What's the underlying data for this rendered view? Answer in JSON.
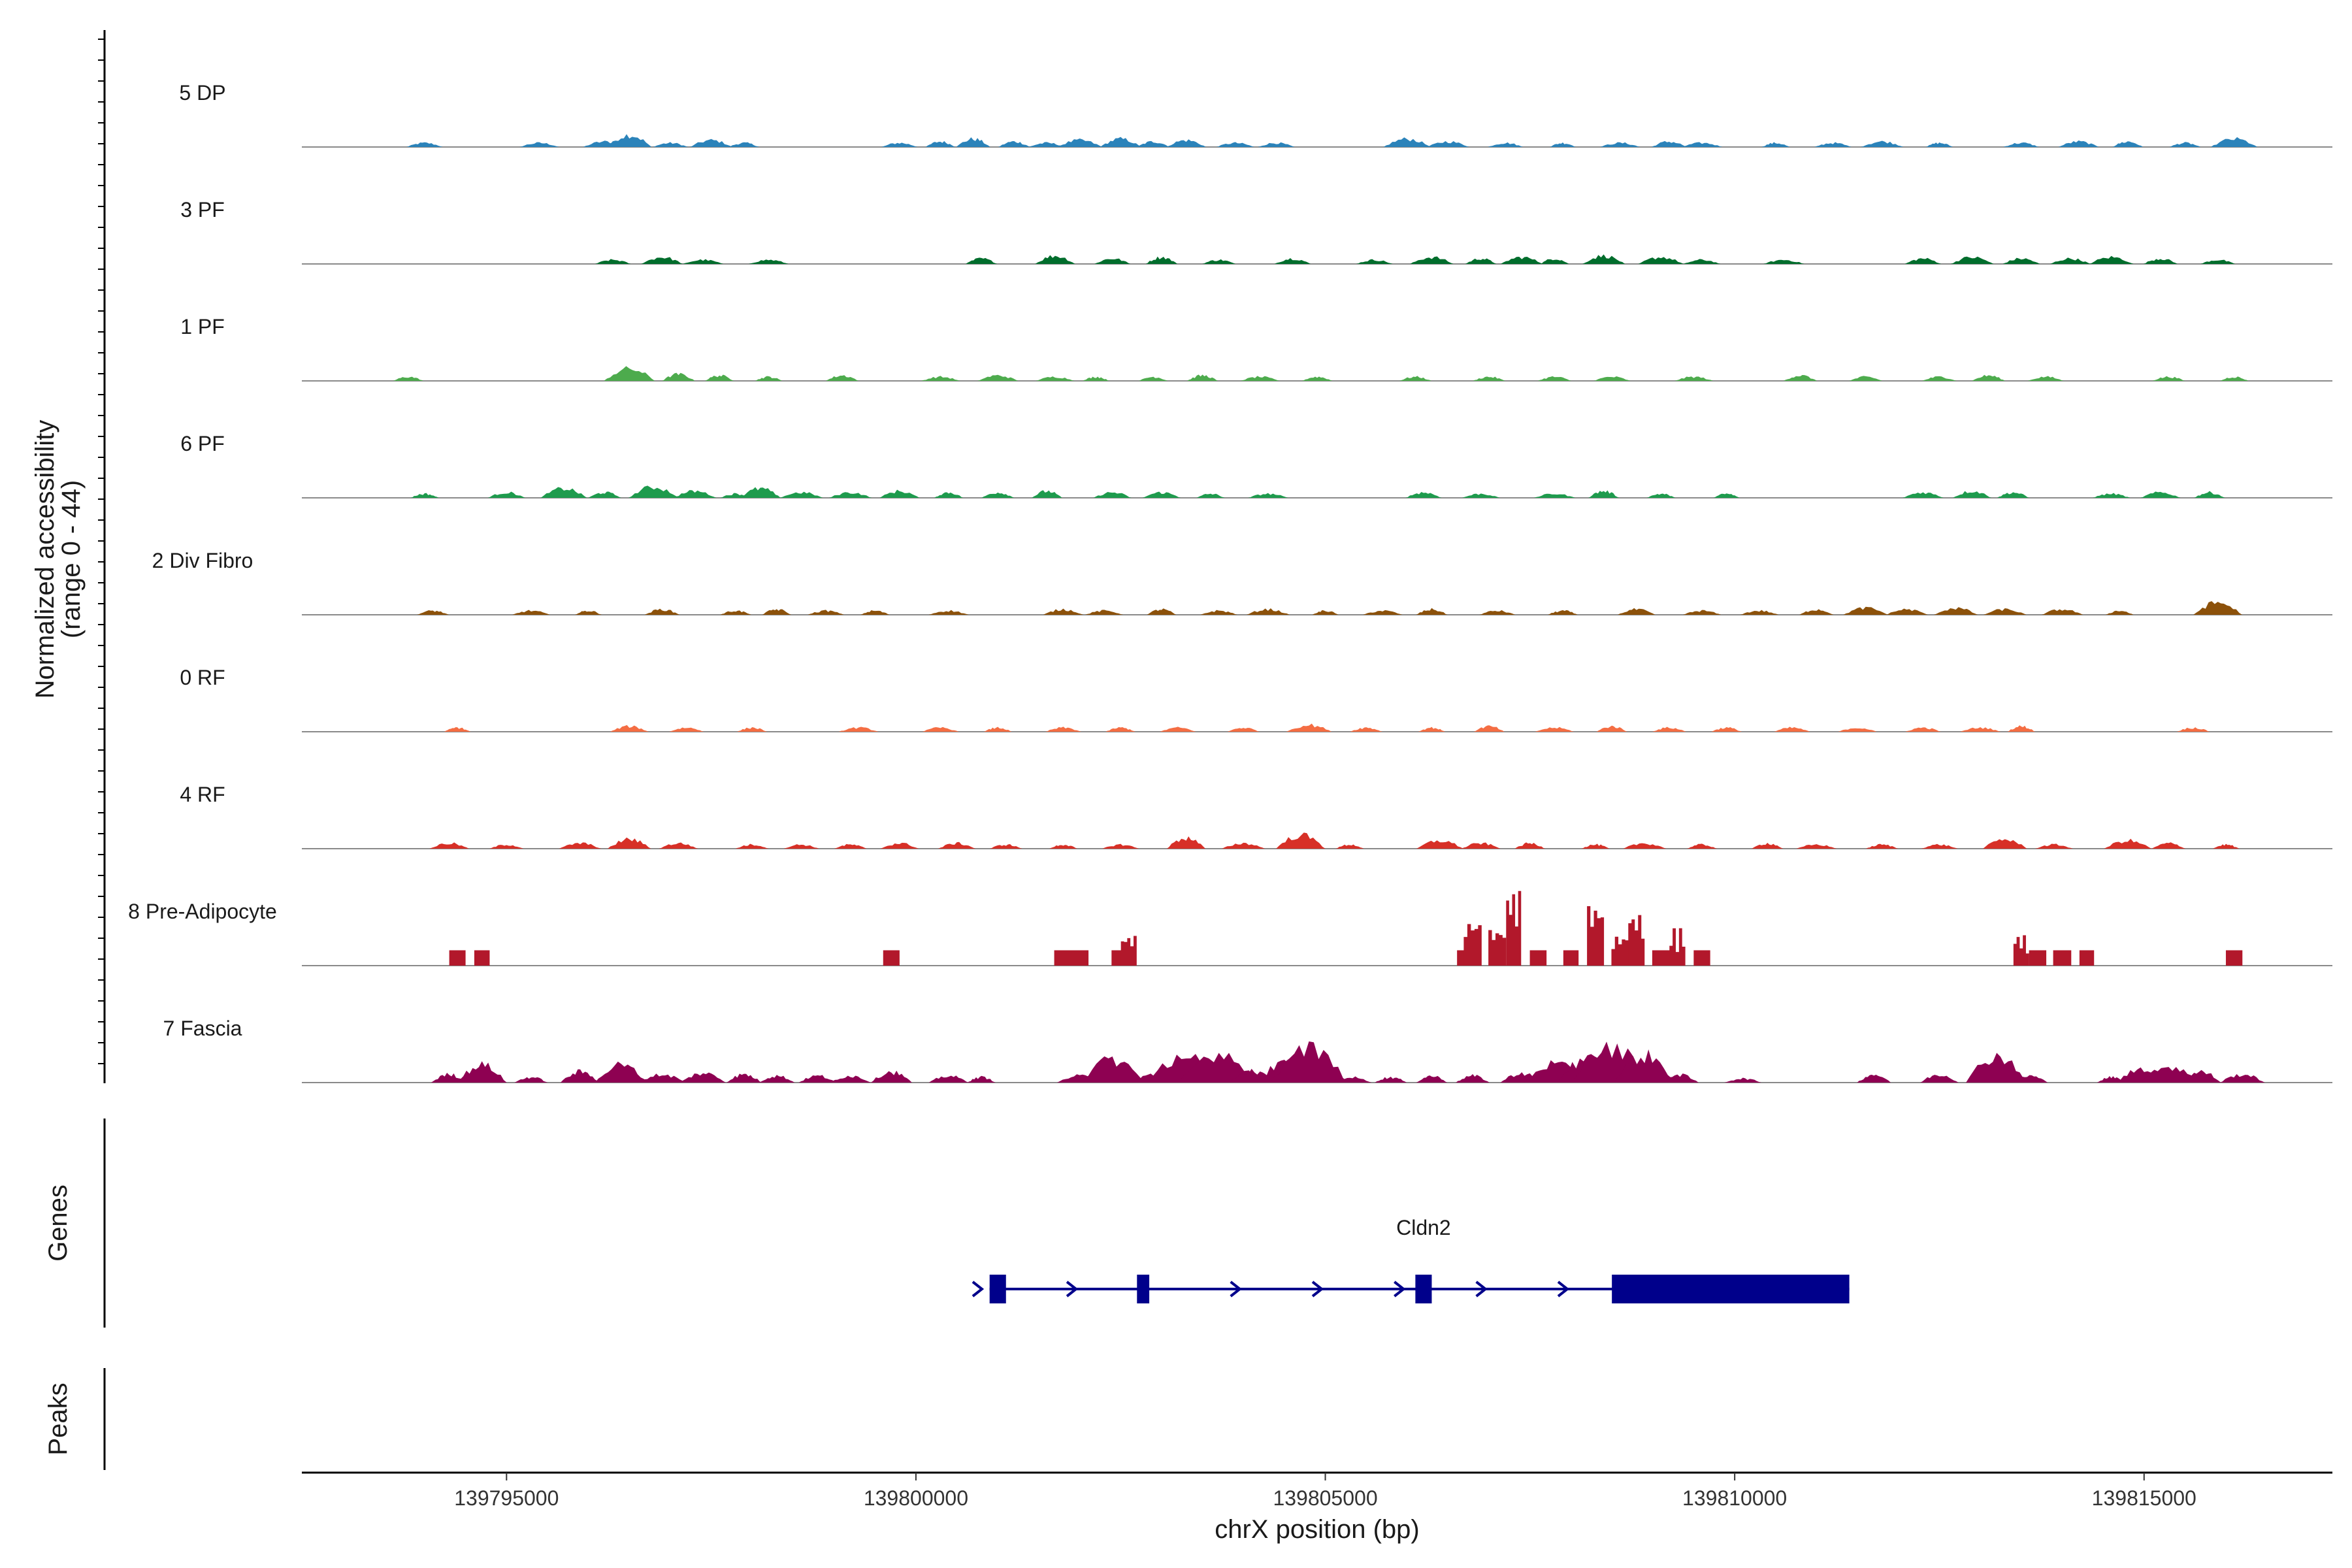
{
  "chart_data": {
    "type": "area",
    "title": "",
    "ylabel_line1": "Normalized accessibility",
    "ylabel_line2": "(range 0 - 44)",
    "ylim": [
      0,
      44
    ],
    "xlabel": "chrX position (bp)",
    "xlim": [
      139792500,
      139817300
    ],
    "xticks": [
      139795000,
      139800000,
      139805000,
      139810000,
      139815000
    ],
    "xtick_labels": [
      "139795000",
      "139800000",
      "139805000",
      "139810000",
      "139815000"
    ],
    "region_start": 139793700,
    "region_end": 139816300,
    "tracks": [
      {
        "name": "5 DP",
        "color": "#2b83ba",
        "peaks": [
          [
            139794000,
            3
          ],
          [
            139795400,
            3
          ],
          [
            139796200,
            4
          ],
          [
            139796500,
            9
          ],
          [
            139797000,
            3
          ],
          [
            139797500,
            5
          ],
          [
            139797900,
            3
          ],
          [
            139799800,
            3
          ],
          [
            139800300,
            4
          ],
          [
            139800700,
            6
          ],
          [
            139801200,
            4
          ],
          [
            139801600,
            3
          ],
          [
            139802000,
            5
          ],
          [
            139802500,
            6
          ],
          [
            139802900,
            4
          ],
          [
            139803300,
            5
          ],
          [
            139803900,
            3
          ],
          [
            139804400,
            3
          ],
          [
            139806000,
            6
          ],
          [
            139806500,
            4
          ],
          [
            139807200,
            3
          ],
          [
            139807900,
            3
          ],
          [
            139808600,
            3
          ],
          [
            139809200,
            4
          ],
          [
            139809600,
            3
          ],
          [
            139810500,
            3
          ],
          [
            139811200,
            3
          ],
          [
            139811800,
            4
          ],
          [
            139812500,
            3
          ],
          [
            139813500,
            3
          ],
          [
            139814200,
            4
          ],
          [
            139814800,
            4
          ],
          [
            139815500,
            3
          ],
          [
            139816100,
            6
          ]
        ]
      },
      {
        "name": "3 PF",
        "color": "#006d2c",
        "peaks": [
          [
            139796300,
            3
          ],
          [
            139796900,
            5
          ],
          [
            139797400,
            3
          ],
          [
            139798200,
            3
          ],
          [
            139800800,
            4
          ],
          [
            139801700,
            6
          ],
          [
            139802400,
            4
          ],
          [
            139803000,
            5
          ],
          [
            139803700,
            3
          ],
          [
            139804600,
            4
          ],
          [
            139805600,
            3
          ],
          [
            139806300,
            5
          ],
          [
            139806900,
            4
          ],
          [
            139807400,
            5
          ],
          [
            139807800,
            4
          ],
          [
            139808400,
            6
          ],
          [
            139809100,
            5
          ],
          [
            139809600,
            3
          ],
          [
            139810600,
            3
          ],
          [
            139812300,
            4
          ],
          [
            139812900,
            5
          ],
          [
            139813500,
            4
          ],
          [
            139814100,
            4
          ],
          [
            139814600,
            5
          ],
          [
            139815200,
            4
          ],
          [
            139815900,
            3
          ]
        ]
      },
      {
        "name": "1 PF",
        "color": "#4dab4d",
        "peaks": [
          [
            139793800,
            3
          ],
          [
            139796500,
            9
          ],
          [
            139797100,
            5
          ],
          [
            139797600,
            4
          ],
          [
            139798200,
            3
          ],
          [
            139799100,
            4
          ],
          [
            139800300,
            3
          ],
          [
            139801000,
            4
          ],
          [
            139801700,
            3
          ],
          [
            139802200,
            3
          ],
          [
            139802900,
            3
          ],
          [
            139803500,
            4
          ],
          [
            139804200,
            3
          ],
          [
            139804900,
            3
          ],
          [
            139806100,
            3
          ],
          [
            139807000,
            3
          ],
          [
            139807800,
            3
          ],
          [
            139808500,
            3
          ],
          [
            139809500,
            3
          ],
          [
            139810800,
            4
          ],
          [
            139811600,
            3
          ],
          [
            139812500,
            3
          ],
          [
            139813100,
            4
          ],
          [
            139813800,
            3
          ],
          [
            139815300,
            3
          ],
          [
            139816100,
            3
          ]
        ]
      },
      {
        "name": "6 PF",
        "color": "#1e9b4d",
        "peaks": [
          [
            139794000,
            3
          ],
          [
            139795000,
            4
          ],
          [
            139795700,
            7
          ],
          [
            139796200,
            4
          ],
          [
            139796800,
            8
          ],
          [
            139797300,
            5
          ],
          [
            139797800,
            3
          ],
          [
            139798100,
            7
          ],
          [
            139798600,
            4
          ],
          [
            139799200,
            4
          ],
          [
            139799800,
            5
          ],
          [
            139800400,
            4
          ],
          [
            139801000,
            4
          ],
          [
            139801600,
            5
          ],
          [
            139802400,
            4
          ],
          [
            139803000,
            4
          ],
          [
            139803600,
            3
          ],
          [
            139804300,
            3
          ],
          [
            139806200,
            4
          ],
          [
            139806900,
            3
          ],
          [
            139807800,
            3
          ],
          [
            139808400,
            5
          ],
          [
            139809100,
            3
          ],
          [
            139809900,
            3
          ],
          [
            139812300,
            4
          ],
          [
            139812900,
            5
          ],
          [
            139813400,
            4
          ],
          [
            139814600,
            3
          ],
          [
            139815200,
            4
          ],
          [
            139815800,
            4
          ]
        ]
      },
      {
        "name": "2 Div Fibro",
        "color": "#8c510a",
        "peaks": [
          [
            139794100,
            3
          ],
          [
            139795300,
            3
          ],
          [
            139796000,
            3
          ],
          [
            139796900,
            4
          ],
          [
            139797800,
            3
          ],
          [
            139798300,
            4
          ],
          [
            139798900,
            3
          ],
          [
            139799500,
            3
          ],
          [
            139800400,
            3
          ],
          [
            139801800,
            4
          ],
          [
            139802300,
            3
          ],
          [
            139803000,
            4
          ],
          [
            139803700,
            3
          ],
          [
            139804300,
            4
          ],
          [
            139805000,
            3
          ],
          [
            139805700,
            3
          ],
          [
            139806300,
            4
          ],
          [
            139807100,
            3
          ],
          [
            139807900,
            3
          ],
          [
            139808800,
            4
          ],
          [
            139809600,
            3
          ],
          [
            139810300,
            3
          ],
          [
            139811000,
            4
          ],
          [
            139811600,
            5
          ],
          [
            139812100,
            4
          ],
          [
            139812700,
            5
          ],
          [
            139813300,
            4
          ],
          [
            139814000,
            4
          ],
          [
            139814700,
            3
          ],
          [
            139815900,
            9
          ]
        ]
      },
      {
        "name": "0 RF",
        "color": "#f46d43",
        "peaks": [
          [
            139794400,
            3
          ],
          [
            139796500,
            4
          ],
          [
            139797200,
            3
          ],
          [
            139798000,
            3
          ],
          [
            139799300,
            3
          ],
          [
            139800300,
            3
          ],
          [
            139801000,
            3
          ],
          [
            139801800,
            3
          ],
          [
            139802500,
            3
          ],
          [
            139803200,
            3
          ],
          [
            139804000,
            3
          ],
          [
            139804800,
            5
          ],
          [
            139805500,
            3
          ],
          [
            139806300,
            3
          ],
          [
            139807000,
            4
          ],
          [
            139807800,
            3
          ],
          [
            139808500,
            4
          ],
          [
            139809200,
            3
          ],
          [
            139809900,
            3
          ],
          [
            139810700,
            3
          ],
          [
            139811500,
            3
          ],
          [
            139812300,
            3
          ],
          [
            139813000,
            3
          ],
          [
            139813500,
            4
          ],
          [
            139815600,
            3
          ]
        ]
      },
      {
        "name": "4 RF",
        "color": "#d73027",
        "peaks": [
          [
            139794300,
            4
          ],
          [
            139795000,
            3
          ],
          [
            139795900,
            4
          ],
          [
            139796500,
            7
          ],
          [
            139797100,
            4
          ],
          [
            139798000,
            3
          ],
          [
            139798600,
            3
          ],
          [
            139799200,
            3
          ],
          [
            139799800,
            4
          ],
          [
            139800500,
            4
          ],
          [
            139801100,
            3
          ],
          [
            139801800,
            3
          ],
          [
            139802500,
            3
          ],
          [
            139803300,
            8
          ],
          [
            139804000,
            4
          ],
          [
            139804700,
            10
          ],
          [
            139805300,
            3
          ],
          [
            139806400,
            6
          ],
          [
            139806900,
            4
          ],
          [
            139807500,
            4
          ],
          [
            139808300,
            3
          ],
          [
            139808900,
            4
          ],
          [
            139809600,
            3
          ],
          [
            139810400,
            4
          ],
          [
            139811000,
            3
          ],
          [
            139811800,
            3
          ],
          [
            139812500,
            3
          ],
          [
            139813300,
            7
          ],
          [
            139813900,
            3
          ],
          [
            139814800,
            6
          ],
          [
            139815300,
            4
          ],
          [
            139816000,
            3
          ]
        ]
      },
      {
        "name": "8 Pre-Adipocyte",
        "color": "#b2182b",
        "peaks": [
          [
            139794400,
            9
          ],
          [
            139794700,
            9
          ],
          [
            139799700,
            9
          ],
          [
            139801800,
            9
          ],
          [
            139802000,
            9
          ],
          [
            139802500,
            9
          ],
          [
            139802600,
            18
          ],
          [
            139806700,
            9
          ],
          [
            139806800,
            27
          ],
          [
            139807100,
            22
          ],
          [
            139807300,
            44
          ],
          [
            139807600,
            9
          ],
          [
            139808000,
            9
          ],
          [
            139808300,
            36
          ],
          [
            139808600,
            18
          ],
          [
            139808800,
            31
          ],
          [
            139809100,
            9
          ],
          [
            139809300,
            22
          ],
          [
            139809600,
            9
          ],
          [
            139813500,
            18
          ],
          [
            139813700,
            9
          ],
          [
            139814000,
            9
          ],
          [
            139814300,
            9
          ],
          [
            139816100,
            9
          ]
        ]
      },
      {
        "name": "7 Fascia",
        "color": "#8e0152",
        "peaks": [
          [
            139794300,
            6
          ],
          [
            139794700,
            13
          ],
          [
            139795300,
            4
          ],
          [
            139795900,
            8
          ],
          [
            139796400,
            13
          ],
          [
            139796900,
            6
          ],
          [
            139797400,
            7
          ],
          [
            139797900,
            6
          ],
          [
            139798300,
            5
          ],
          [
            139798800,
            5
          ],
          [
            139799200,
            5
          ],
          [
            139799700,
            8
          ],
          [
            139800400,
            5
          ],
          [
            139800800,
            4
          ],
          [
            139802000,
            5
          ],
          [
            139802400,
            17
          ],
          [
            139802900,
            6
          ],
          [
            139803300,
            21
          ],
          [
            139803700,
            22
          ],
          [
            139804100,
            9
          ],
          [
            139804500,
            14
          ],
          [
            139804800,
            25
          ],
          [
            139805300,
            4
          ],
          [
            139805800,
            4
          ],
          [
            139806300,
            5
          ],
          [
            139806800,
            5
          ],
          [
            139807400,
            7
          ],
          [
            139807800,
            14
          ],
          [
            139808200,
            18
          ],
          [
            139808500,
            25
          ],
          [
            139808900,
            20
          ],
          [
            139809300,
            6
          ],
          [
            139810100,
            3
          ],
          [
            139811700,
            6
          ],
          [
            139812500,
            6
          ],
          [
            139813200,
            20
          ],
          [
            139813600,
            5
          ],
          [
            139814600,
            4
          ],
          [
            139815000,
            11
          ],
          [
            139815300,
            12
          ],
          [
            139815700,
            8
          ],
          [
            139816200,
            6
          ]
        ]
      }
    ],
    "genes_label": "Genes",
    "peaks_label": "Peaks",
    "gene": {
      "name": "Cldn2",
      "strand": "+",
      "color": "#00008b",
      "start": 139800900,
      "end": 139811400,
      "exons": [
        [
          139800900,
          139801100
        ],
        [
          139802700,
          139802850
        ],
        [
          139806100,
          139806300
        ],
        [
          139808500,
          139811400
        ]
      ],
      "arrow_positions": [
        139800750,
        139801900,
        139803900,
        139804900,
        139805900,
        139806900,
        139807900
      ]
    }
  }
}
